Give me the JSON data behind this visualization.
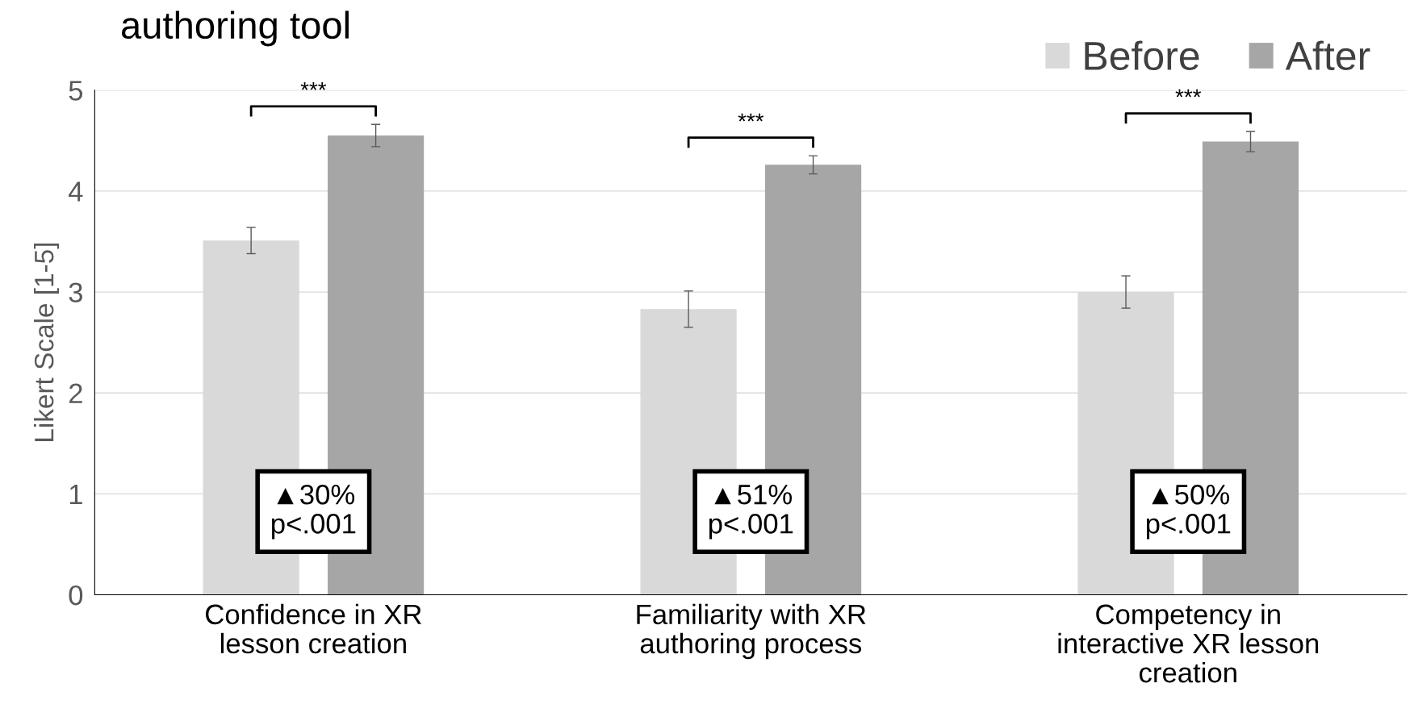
{
  "chart_data": {
    "type": "bar",
    "title": "authoring tool",
    "ylabel": "Likert Scale [1-5]",
    "categories": [
      "Confidence in XR\nlesson creation",
      "Familiarity with XR\nauthoring process",
      "Competency in\ninteractive XR lesson\ncreation"
    ],
    "series": [
      {
        "name": "Before",
        "color": "#d9d9d9",
        "values": [
          3.51,
          2.83,
          3.0
        ],
        "errors": [
          0.13,
          0.18,
          0.16
        ]
      },
      {
        "name": "After",
        "color": "#a6a6a6",
        "values": [
          4.55,
          4.26,
          4.49
        ],
        "errors": [
          0.11,
          0.09,
          0.1
        ]
      }
    ],
    "ylim": [
      0,
      5
    ],
    "yticks": [
      0,
      1,
      2,
      3,
      4,
      5
    ],
    "grid": "y",
    "legend": "top right",
    "annotations": [
      "***",
      "***",
      "***",
      "▲30%\np<.001",
      "▲51%\np<.001",
      "▲50%\np<.001"
    ]
  }
}
